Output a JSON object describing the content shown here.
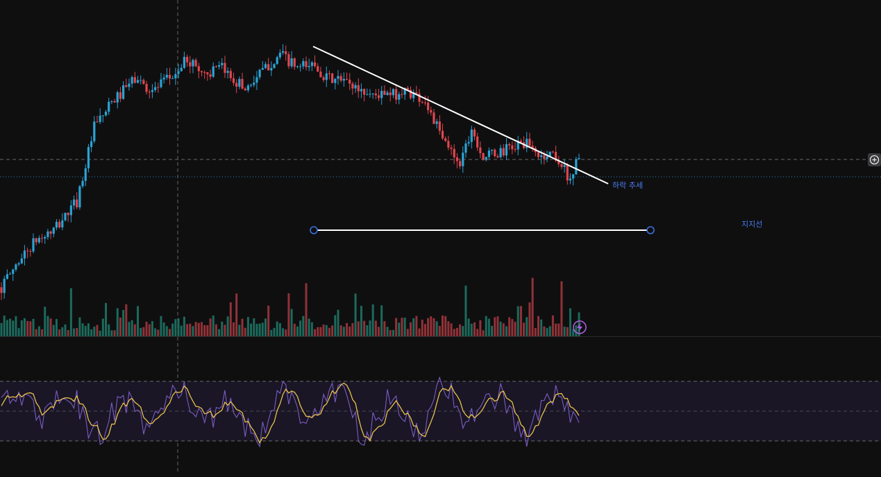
{
  "chart_data": {
    "type": "candlestick",
    "panes": [
      "price",
      "volume",
      "oscillator"
    ],
    "series_count": 200,
    "price_path": [
      [
        0,
        0.05
      ],
      [
        6,
        0.16
      ],
      [
        12,
        0.24
      ],
      [
        18,
        0.28
      ],
      [
        26,
        0.4
      ],
      [
        32,
        0.7
      ],
      [
        38,
        0.8
      ],
      [
        46,
        0.9
      ],
      [
        52,
        0.85
      ],
      [
        60,
        0.92
      ],
      [
        64,
        0.98
      ],
      [
        70,
        0.92
      ],
      [
        76,
        0.94
      ],
      [
        84,
        0.86
      ],
      [
        90,
        0.93
      ],
      [
        96,
        1.0
      ],
      [
        102,
        0.94
      ],
      [
        108,
        0.96
      ],
      [
        112,
        0.9
      ],
      [
        118,
        0.89
      ],
      [
        126,
        0.84
      ],
      [
        134,
        0.83
      ],
      [
        140,
        0.85
      ],
      [
        146,
        0.81
      ],
      [
        152,
        0.65
      ],
      [
        158,
        0.56
      ],
      [
        162,
        0.7
      ],
      [
        166,
        0.58
      ],
      [
        172,
        0.6
      ],
      [
        180,
        0.64
      ],
      [
        186,
        0.58
      ],
      [
        190,
        0.6
      ],
      [
        196,
        0.49
      ],
      [
        199,
        0.59
      ],
      [
        203,
        0.62
      ],
      [
        209,
        0.61
      ]
    ],
    "trend_line_label": "하락 추세",
    "support_line_label": "지지선",
    "oscillator": {
      "colors": {
        "fast": "#7b5cc4",
        "signal": "#e8c24a",
        "band": "#1a1626"
      }
    },
    "colors": {
      "up": "#2ba3d4",
      "down": "#e0464d",
      "volume_up": "#1e7a6a",
      "volume_down": "#a8383f",
      "drawing": "#ffffff",
      "handle": "#3b6fe0",
      "label": "#4a7cf0"
    },
    "grid": false
  },
  "toolbar": {
    "add_icon": "plus-circle-icon",
    "alert_icon": "lightning-icon"
  }
}
